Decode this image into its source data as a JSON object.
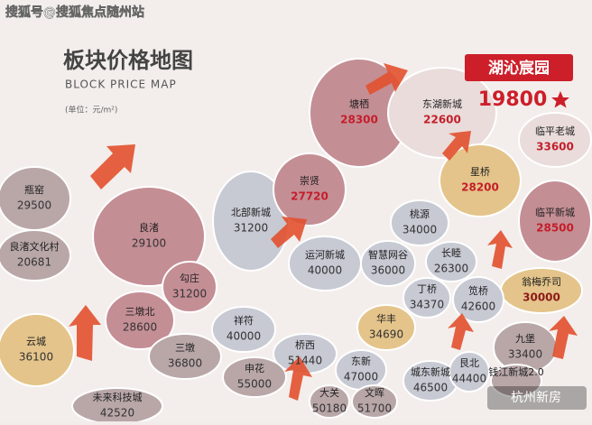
{
  "watermark": "搜狐号@搜狐焦点随州站",
  "header": {
    "title": "板块价格地图",
    "subtitle": "BLOCK PRICE MAP",
    "unit": "(单位：元/m²)"
  },
  "highlight": {
    "name": "湖沁宸园",
    "price": 19800
  },
  "regions": [
    {
      "name": "瓶窑",
      "price": 29500
    },
    {
      "name": "良渚文化村",
      "price": 20681
    },
    {
      "name": "良渚",
      "price": 29100
    },
    {
      "name": "北部新城",
      "price": 31200
    },
    {
      "name": "塘栖",
      "price": 28300
    },
    {
      "name": "东湖新城",
      "price": 22600
    },
    {
      "name": "临平老城",
      "price": 33600
    },
    {
      "name": "崇贤",
      "price": 27720
    },
    {
      "name": "星桥",
      "price": 28200
    },
    {
      "name": "临平新城",
      "price": 28500
    },
    {
      "name": "桃源",
      "price": 34000
    },
    {
      "name": "运河新城",
      "price": 40000
    },
    {
      "name": "智慧网谷",
      "price": 36000
    },
    {
      "name": "长睦",
      "price": 26300
    },
    {
      "name": "翁梅乔司",
      "price": 30000
    },
    {
      "name": "勾庄",
      "price": 31200
    },
    {
      "name": "三墩北",
      "price": 28600
    },
    {
      "name": "丁桥",
      "price": 34370
    },
    {
      "name": "笕桥",
      "price": 42600
    },
    {
      "name": "云城",
      "price": 36100
    },
    {
      "name": "祥符",
      "price": 40000
    },
    {
      "name": "华丰",
      "price": 34690
    },
    {
      "name": "九堡",
      "price": 33400
    },
    {
      "name": "三墩",
      "price": 36800
    },
    {
      "name": "桥西",
      "price": 51440
    },
    {
      "name": "东新",
      "price": 47000
    },
    {
      "name": "申花",
      "price": 55000
    },
    {
      "name": "城东新城",
      "price": 46500
    },
    {
      "name": "艮北",
      "price": 44400
    },
    {
      "name": "大关",
      "price": 50180
    },
    {
      "name": "文晖",
      "price": 51700
    },
    {
      "name": "未来科技城",
      "price": 42520
    },
    {
      "name": "钱江新城2.0"
    }
  ],
  "footer": {
    "brand": "杭州新房"
  }
}
